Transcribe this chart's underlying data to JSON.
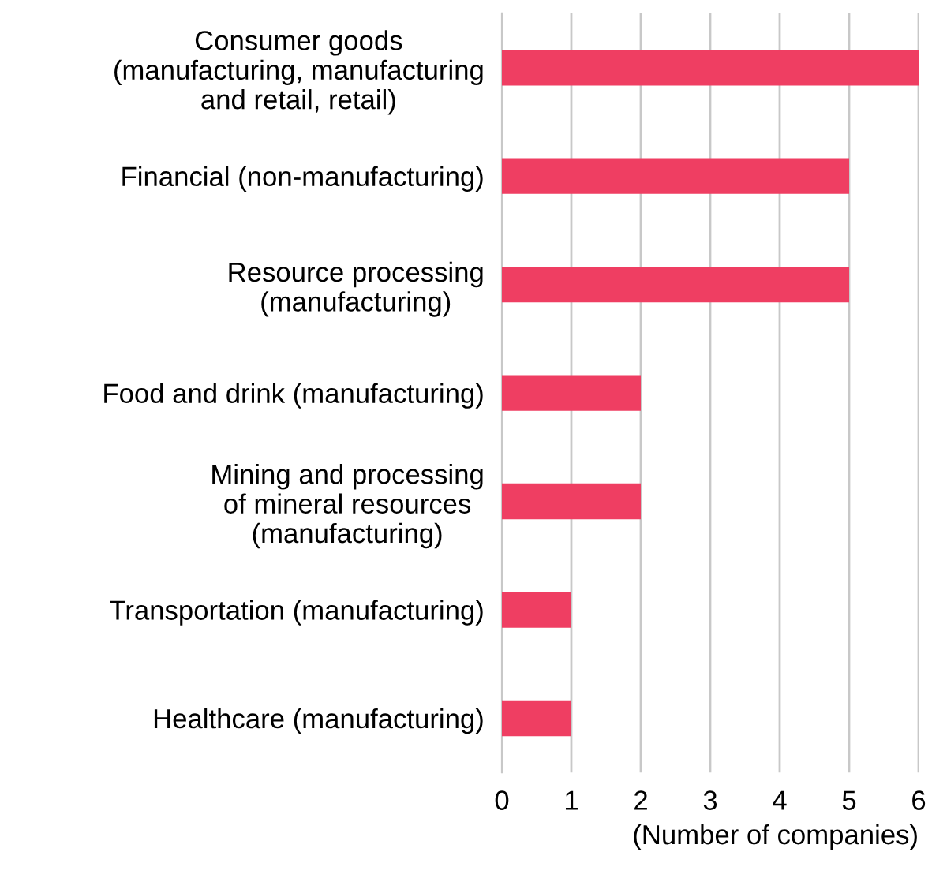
{
  "chart_data": {
    "type": "bar",
    "orientation": "horizontal",
    "xlabel": "(Number of companies)",
    "categories": [
      "Consumer goods\n(manufacturing, manufacturing\nand retail, retail)",
      "Financial (non-manufacturing)",
      "Resource processing\n(manufacturing)",
      "Food and drink (manufacturing)",
      "Mining and processing\nof mineral resources\n(manufacturing)",
      "Transportation (manufacturing)",
      "Healthcare (manufacturing)"
    ],
    "values": [
      6,
      5,
      5,
      2,
      2,
      1,
      1
    ],
    "color": "#ef3e62",
    "xlim": [
      0,
      6
    ],
    "xticks": [
      0,
      1,
      2,
      3,
      4,
      5,
      6
    ],
    "grid": "x"
  }
}
